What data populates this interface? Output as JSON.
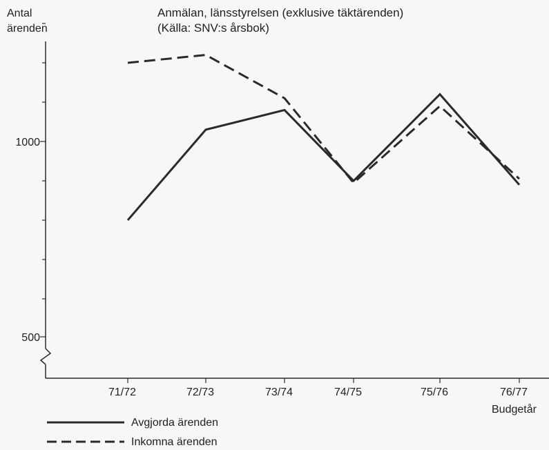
{
  "chart_data": {
    "type": "line",
    "title": "Anmälan, länsstyrelsen (exklusive täktärenden)",
    "subtitle": "(Källa: SNV:s årsbok)",
    "ylabel_line1": "Antal",
    "ylabel_line2": "ärenden",
    "xlabel": "Budgetår",
    "categories": [
      "71/72",
      "72/73",
      "73/74",
      "74/75",
      "75/76",
      "76/77"
    ],
    "y_ticks": [
      500,
      1000
    ],
    "ylim": [
      500,
      1300
    ],
    "axis_break": true,
    "grid": false,
    "legend_position": "bottom-left",
    "series": [
      {
        "name": "Avgjorda ärenden",
        "style": "solid",
        "values": [
          800,
          1030,
          1080,
          900,
          1120,
          890
        ]
      },
      {
        "name": "Inkomna ärenden",
        "style": "dashed",
        "values": [
          1200,
          1220,
          1110,
          895,
          1090,
          905
        ]
      }
    ],
    "colors": {
      "line": "#2a2a2a",
      "background": "#f7f7f5"
    }
  }
}
